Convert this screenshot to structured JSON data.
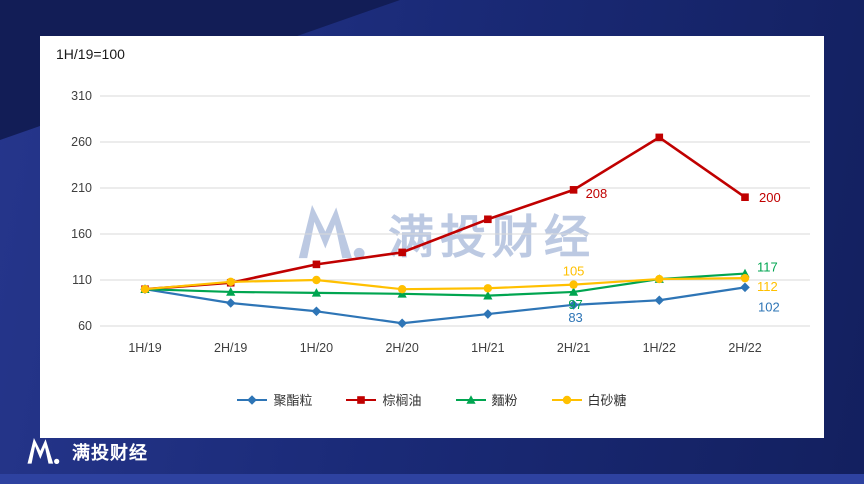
{
  "page": {
    "header_note": "1H/19=100",
    "watermark": {
      "text": "满投财经"
    },
    "brand": {
      "name": "满投财经"
    },
    "colors": {
      "background": "#1a2a77",
      "card": "#ffffff",
      "bottom_strip": "#2e42a0",
      "watermark": "#bcc9e2"
    }
  },
  "chart_data": {
    "type": "line",
    "title": "",
    "xlabel": "",
    "ylabel": "",
    "categories": [
      "1H/19",
      "2H/19",
      "1H/20",
      "2H/20",
      "1H/21",
      "2H/21",
      "1H/22",
      "2H/22"
    ],
    "series": [
      {
        "name": "聚酯粒",
        "color": "#2E75B6",
        "marker": "diamond",
        "values": [
          100,
          85,
          76,
          63,
          73,
          83,
          88,
          102
        ]
      },
      {
        "name": "棕榈油",
        "color": "#C00000",
        "marker": "square",
        "values": [
          100,
          107,
          127,
          140,
          176,
          208,
          265,
          200
        ]
      },
      {
        "name": "麵粉",
        "color": "#00A550",
        "marker": "triangle",
        "values": [
          100,
          97,
          96,
          95,
          93,
          97,
          111,
          117
        ]
      },
      {
        "name": "白砂糖",
        "color": "#FFC000",
        "marker": "circle",
        "values": [
          100,
          108,
          110,
          100,
          101,
          105,
          111,
          112
        ]
      }
    ],
    "labeled_indices": [
      5,
      7
    ],
    "data_labels": {
      "聚酯粒": {
        "2H/21": 83,
        "2H/22": 102
      },
      "棕榈油": {
        "2H/21": 208,
        "2H/22": 200
      },
      "麵粉": {
        "2H/21": 97,
        "2H/22": 117
      },
      "白砂糖": {
        "2H/21": 105,
        "2H/22": 112
      }
    },
    "ylim": [
      60,
      310
    ],
    "ytick_step": 50,
    "grid": true,
    "legend_position": "bottom"
  }
}
